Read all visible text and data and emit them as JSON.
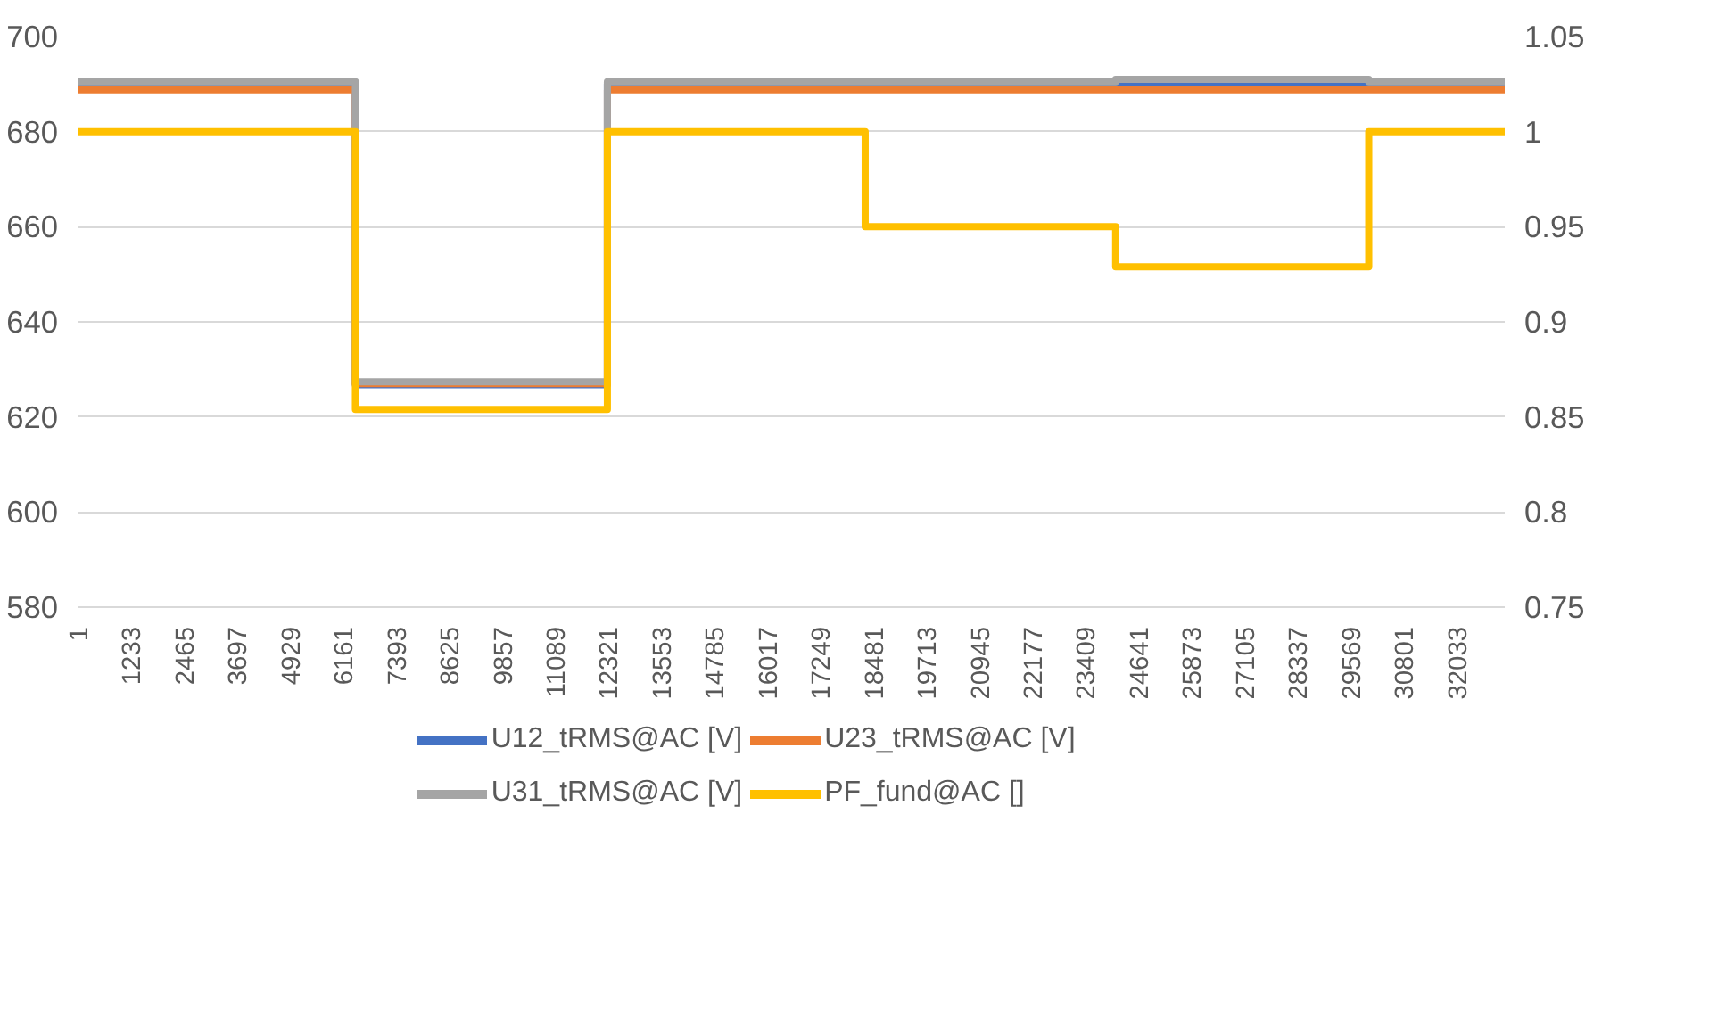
{
  "chart_data": {
    "type": "step",
    "xlim": [
      1,
      33160
    ],
    "xticks": [
      1,
      1233,
      2465,
      3697,
      4929,
      6161,
      7393,
      8625,
      9857,
      11089,
      12321,
      13553,
      14785,
      16017,
      17249,
      18481,
      19713,
      20945,
      22177,
      23409,
      24641,
      25873,
      27105,
      28337,
      29569,
      30801,
      32033
    ],
    "ylim": [
      580,
      700
    ],
    "yticks": [
      580,
      600,
      620,
      640,
      660,
      680,
      700
    ],
    "y2lim": [
      0.75,
      1.05
    ],
    "y2ticks": [
      0.75,
      0.8,
      0.85,
      0.9,
      0.95,
      1,
      1.05
    ],
    "grid": "y",
    "legend": "bottom",
    "line_style": "solid",
    "marker": "none",
    "series": [
      {
        "name": "U12_tRMS@AC [V]",
        "color": "#4472c4",
        "x": [
          1,
          6456,
          12310,
          33160
        ],
        "values": [
          690,
          626.8,
          690,
          690
        ]
      },
      {
        "name": "U23_tRMS@AC [V]",
        "color": "#ed7d31",
        "x": [
          1,
          6456,
          12310,
          33160
        ],
        "values": [
          688.8,
          627,
          688.8,
          688.8
        ]
      },
      {
        "name": "U31_tRMS@AC [V]",
        "color": "#a5a5a5",
        "x": [
          1,
          6456,
          12310,
          24120,
          30000,
          33160
        ],
        "values": [
          690.5,
          627.4,
          690.5,
          691,
          690.5,
          690.5
        ]
      },
      {
        "name": "PF_fund@AC []",
        "color": "#ffc000",
        "axis": "y2",
        "x": [
          1,
          6456,
          12310,
          18300,
          24120,
          30000,
          33160
        ],
        "values": [
          1,
          0.854,
          1,
          0.95,
          0.929,
          1,
          1
        ]
      }
    ]
  }
}
